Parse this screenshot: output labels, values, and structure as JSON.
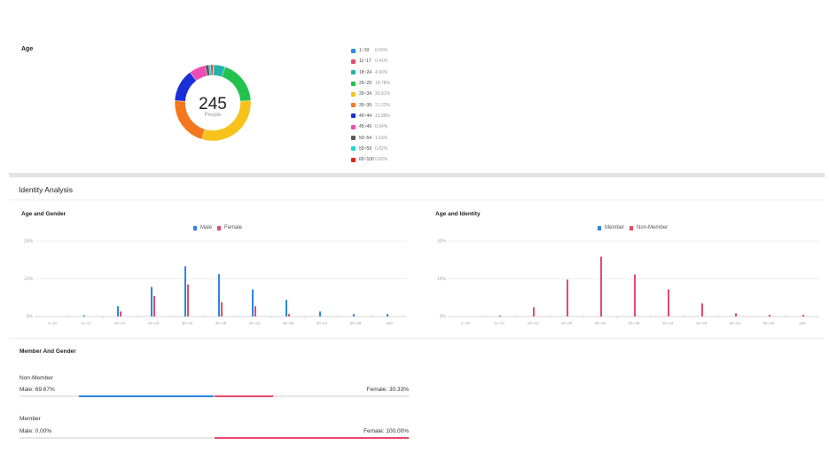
{
  "age_section": {
    "title": "Age",
    "total": "245",
    "total_unit": "People",
    "legend": [
      {
        "label": "1~10",
        "pct": "0.00%",
        "color": "#2b87e6"
      },
      {
        "label": "11~17",
        "pct": "0.41%",
        "color": "#e64a6b"
      },
      {
        "label": "18~24",
        "pct": "4.90%",
        "color": "#23b5a8"
      },
      {
        "label": "25~29",
        "pct": "18.78%",
        "color": "#22c24c"
      },
      {
        "label": "30~34",
        "pct": "30.61%",
        "color": "#f6c21b"
      },
      {
        "label": "35~39",
        "pct": "21.22%",
        "color": "#f5781c"
      },
      {
        "label": "40~44",
        "pct": "13.88%",
        "color": "#1a2fd8"
      },
      {
        "label": "45~49",
        "pct": "6.94%",
        "color": "#f04bb4"
      },
      {
        "label": "50~54",
        "pct": "1.63%",
        "color": "#5a5a5a"
      },
      {
        "label": "55~59",
        "pct": "0.82%",
        "color": "#22d5d8"
      },
      {
        "label": "60~100",
        "pct": "0.82%",
        "color": "#e81d1d"
      }
    ]
  },
  "identity_section": {
    "title": "Identity Analysis"
  },
  "chart_data": [
    {
      "type": "bar",
      "title": "Age and Gender",
      "legend_position": "top-center",
      "grid": true,
      "categories": [
        "1~10",
        "11~17",
        "18~24",
        "25~29",
        "30~34",
        "35~39",
        "40~44",
        "45~49",
        "50~54",
        "55~59",
        "≥60"
      ],
      "y_ticks": [
        "0%",
        "12%",
        "24%"
      ],
      "ylim": [
        0,
        24
      ],
      "series": [
        {
          "name": "Male",
          "color": "#2b87e6",
          "values": [
            0,
            0.4,
            3.3,
            9.4,
            16.0,
            13.5,
            8.6,
            5.3,
            1.6,
            0.8,
            0.8
          ]
        },
        {
          "name": "Female",
          "color": "#e64a6b",
          "values": [
            0,
            0,
            1.6,
            6.5,
            10.2,
            4.5,
            3.3,
            0.8,
            0,
            0,
            0
          ]
        }
      ]
    },
    {
      "type": "bar",
      "title": "Age and Identity",
      "legend_position": "top-center",
      "grid": true,
      "categories": [
        "1~10",
        "11~17",
        "18~24",
        "25~29",
        "30~34",
        "35~39",
        "40~44",
        "45~49",
        "50~54",
        "55~59",
        "≥60"
      ],
      "y_ticks": [
        "0%",
        "15%",
        "30%"
      ],
      "ylim": [
        0,
        30
      ],
      "series": [
        {
          "name": "Member",
          "color": "#2b87e6",
          "values": [
            0,
            0,
            0,
            0,
            0,
            0,
            0,
            0,
            0,
            0,
            0
          ]
        },
        {
          "name": "Non-Member",
          "color": "#e64a6b",
          "values": [
            0,
            0.4,
            3.7,
            14.7,
            23.8,
            16.8,
            10.8,
            5.2,
            1.3,
            0.7,
            0.7
          ]
        }
      ]
    }
  ],
  "member_gender": {
    "title": "Member And Gender",
    "groups": [
      {
        "name": "Non-Member",
        "male_label": "Male:",
        "male_pct": "69.67%",
        "female_label": "Female:",
        "female_pct": "30.33%",
        "male_value": 69.67,
        "female_value": 30.33,
        "male_color": "#2b87e6",
        "female_color": "#e64a6b"
      },
      {
        "name": "Member",
        "male_label": "Male:",
        "male_pct": "0.00%",
        "female_label": "Female:",
        "female_pct": "100.00%",
        "male_value": 0,
        "female_value": 100,
        "male_color": "#2b87e6",
        "female_color": "#e64a6b"
      }
    ]
  }
}
